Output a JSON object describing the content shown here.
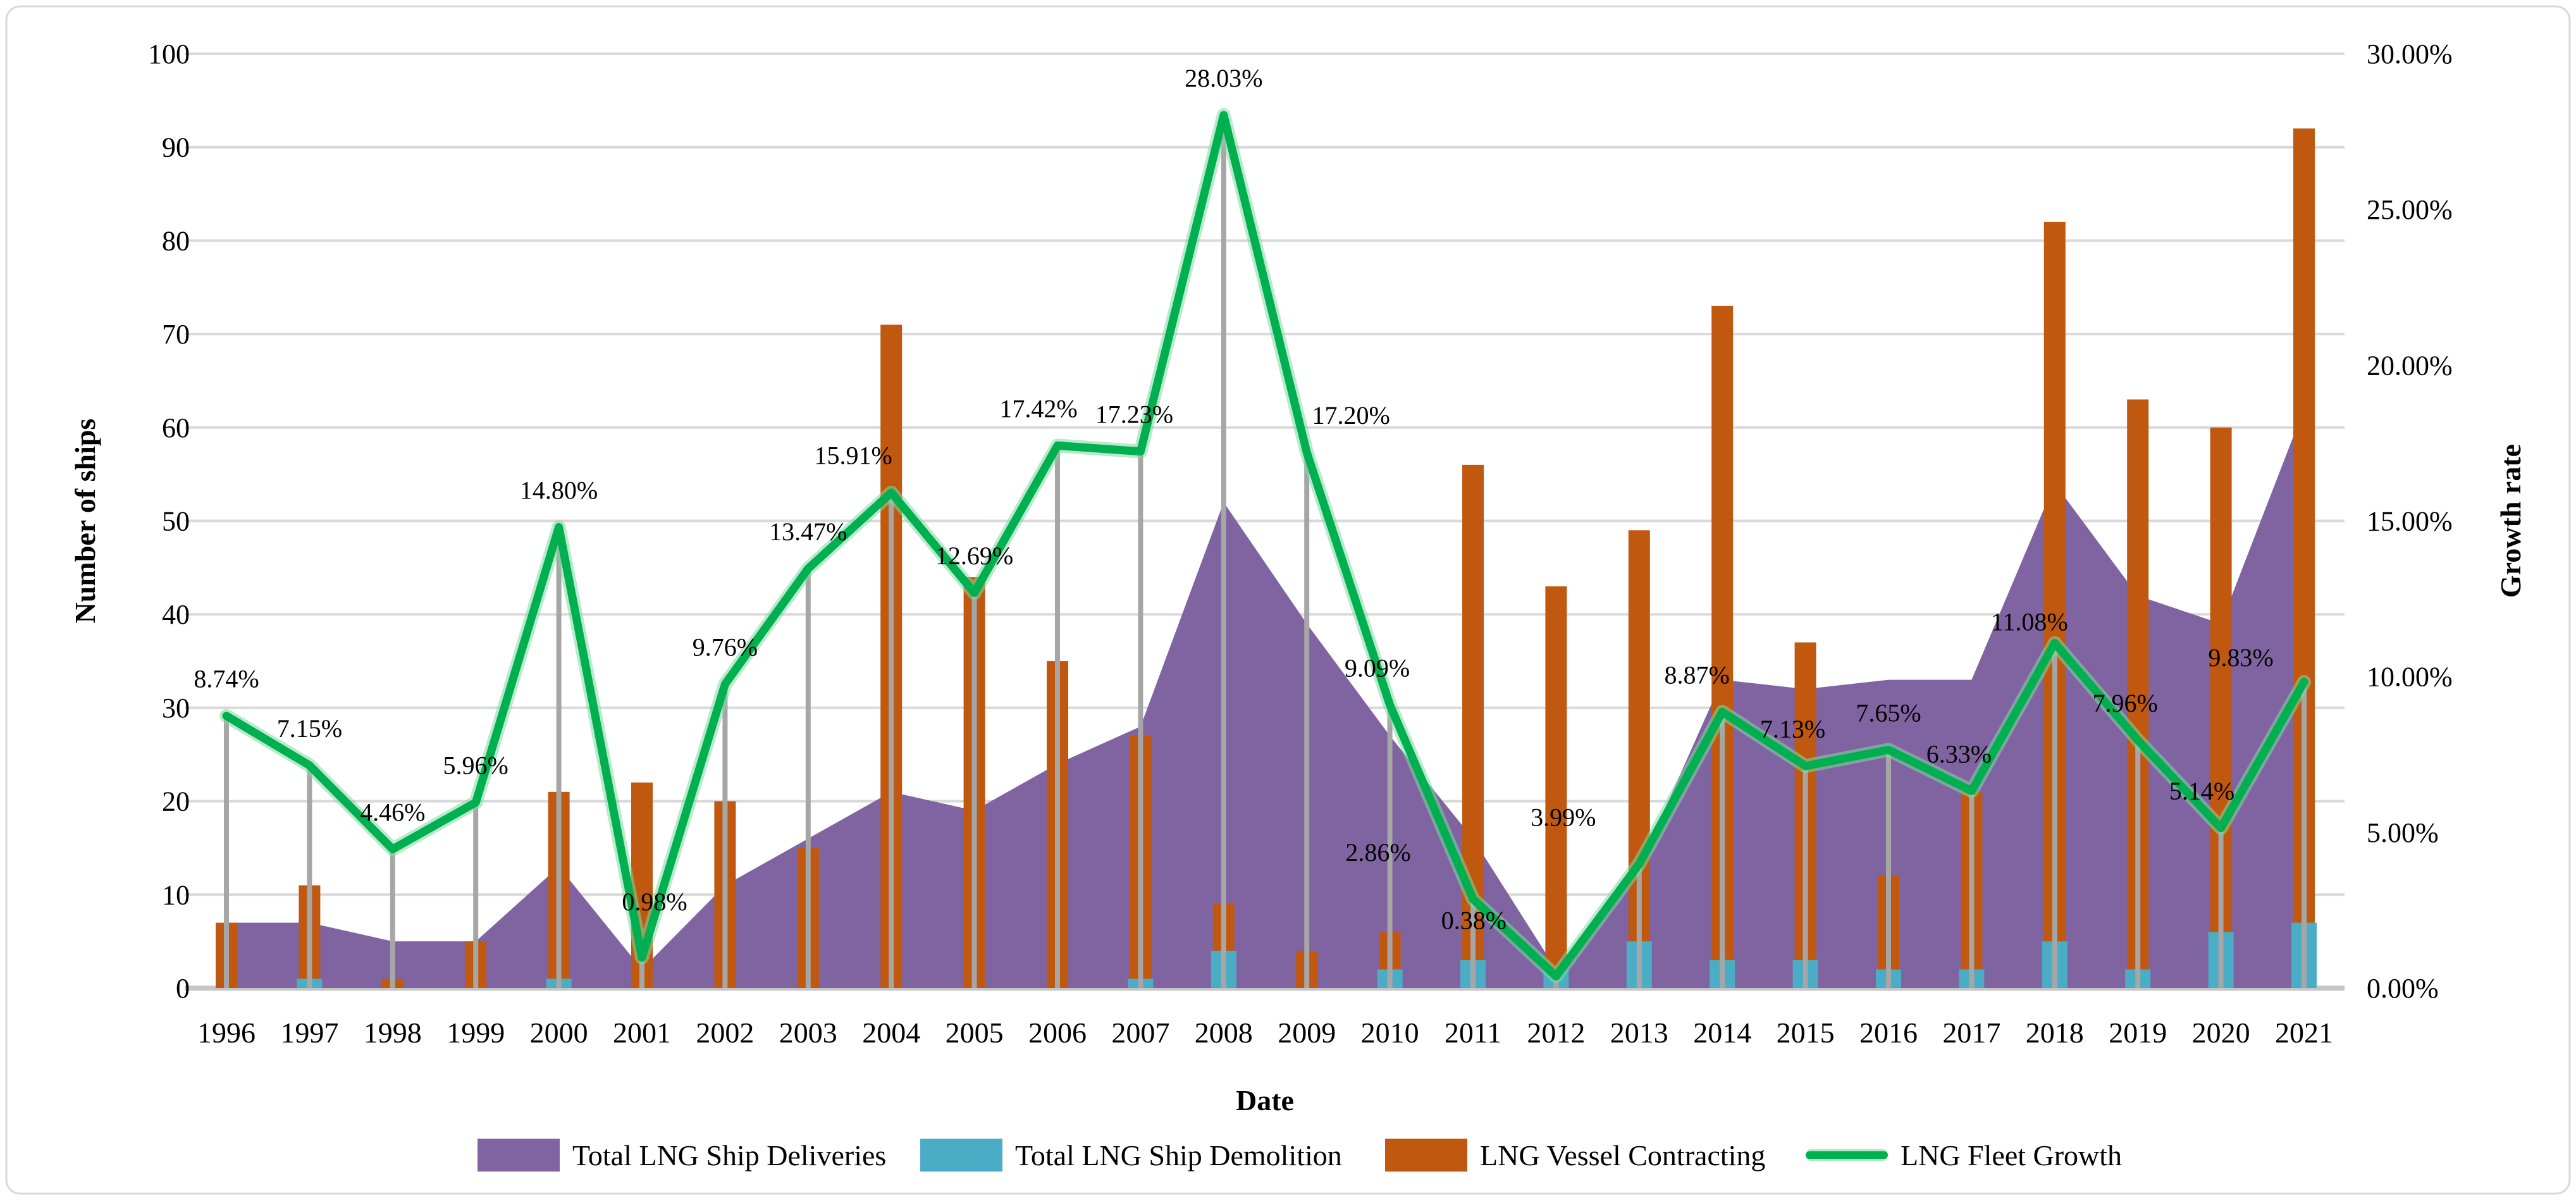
{
  "chart_data": {
    "type": "combo",
    "title": "",
    "xlabel": "Date",
    "ylabel_left": "Number of ships",
    "ylabel_right": "Growth rate",
    "x": [
      1996,
      1997,
      1998,
      1999,
      2000,
      2001,
      2002,
      2003,
      2004,
      2005,
      2006,
      2007,
      2008,
      2009,
      2010,
      2011,
      2012,
      2013,
      2014,
      2015,
      2016,
      2017,
      2018,
      2019,
      2020,
      2021
    ],
    "ylim_left": [
      0,
      100
    ],
    "yticks_left": [
      "0",
      "10",
      "20",
      "30",
      "40",
      "50",
      "60",
      "70",
      "80",
      "90",
      "100"
    ],
    "ylim_right": [
      0,
      30
    ],
    "yticks_right": [
      "0.00%",
      "5.00%",
      "10.00%",
      "15.00%",
      "20.00%",
      "25.00%",
      "30.00%"
    ],
    "grid": true,
    "legend_position": "bottom",
    "series": [
      {
        "name": "Total LNG Ship Deliveries",
        "type": "area",
        "axis": "left",
        "color": "#8064A2",
        "values": [
          7,
          7,
          5,
          5,
          13,
          2,
          11,
          16,
          21,
          19,
          24,
          28,
          52,
          39,
          27,
          16,
          2,
          13,
          33,
          32,
          33,
          33,
          54,
          42,
          39,
          62
        ]
      },
      {
        "name": "Total LNG Ship Demolition",
        "type": "bar",
        "axis": "left",
        "color": "#4BACC6",
        "values": [
          0,
          1,
          0,
          0,
          1,
          0,
          0,
          0,
          0,
          0,
          0,
          1,
          4,
          0,
          2,
          3,
          2,
          5,
          3,
          3,
          2,
          2,
          5,
          2,
          6,
          7
        ]
      },
      {
        "name": "LNG Vessel Contracting",
        "type": "bar",
        "axis": "left",
        "color": "#C0580F",
        "values": [
          7,
          11,
          1,
          5,
          21,
          22,
          20,
          15,
          71,
          44,
          35,
          27,
          9,
          4,
          6,
          56,
          43,
          49,
          73,
          37,
          12,
          21,
          82,
          63,
          60,
          92
        ]
      },
      {
        "name": "LNG Fleet Growth",
        "type": "line",
        "axis": "right",
        "color": "#00B050",
        "values": [
          8.74,
          7.15,
          4.46,
          5.96,
          14.8,
          0.98,
          9.76,
          13.47,
          15.91,
          12.69,
          17.42,
          17.23,
          28.03,
          17.2,
          9.09,
          2.86,
          0.38,
          3.99,
          8.87,
          7.13,
          7.65,
          6.33,
          11.08,
          7.96,
          5.14,
          9.83
        ],
        "labels": [
          "8.74%",
          "7.15%",
          "4.46%",
          "5.96%",
          "14.80%",
          "0.98%",
          "9.76%",
          "13.47%",
          "15.91%",
          "12.69%",
          "17.42%",
          "17.23%",
          "28.03%",
          "17.20%",
          "9.09%",
          "2.86%",
          "0.38%",
          "3.99%",
          "8.87%",
          "7.13%",
          "7.65%",
          "6.33%",
          "11.08%",
          "7.96%",
          "5.14%",
          "9.83%"
        ]
      }
    ],
    "label_offsets": {
      "5": [
        20,
        -30
      ],
      "8": [
        -60,
        0
      ],
      "10": [
        -30,
        0
      ],
      "11": [
        -10,
        0
      ],
      "13": [
        70,
        0
      ],
      "14": [
        -20,
        0
      ],
      "15": [
        -150,
        -15
      ],
      "16": [
        -130,
        -30
      ],
      "17": [
        -120,
        -15
      ],
      "18": [
        -40,
        0
      ],
      "19": [
        -20,
        0
      ],
      "21": [
        -20,
        0
      ],
      "22": [
        -40,
        25
      ],
      "23": [
        -20,
        0
      ],
      "24": [
        -30,
        0
      ],
      "25": [
        -100,
        20
      ]
    },
    "colors": {
      "gridline": "#D9D9D9",
      "zero_line": "#C6C6C6",
      "drop_line": "#A6A6A6",
      "line_halo": "#7FD9A2",
      "border": "#D8D8D8",
      "background": "#FFFFFF"
    }
  }
}
